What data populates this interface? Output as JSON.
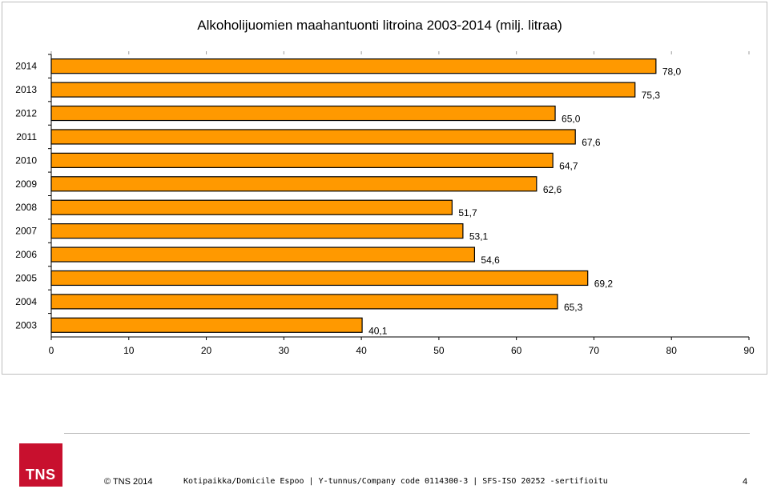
{
  "chart_data": {
    "type": "bar",
    "orientation": "horizontal",
    "title": "Alkoholijuomien maahantuonti litroina 2003-2014 (milj. litraa)",
    "xlabel": "",
    "ylabel": "",
    "categories": [
      "2014",
      "2013",
      "2012",
      "2011",
      "2010",
      "2009",
      "2008",
      "2007",
      "2006",
      "2005",
      "2004",
      "2003"
    ],
    "values": [
      78.0,
      75.3,
      65.0,
      67.6,
      64.7,
      62.6,
      51.7,
      53.1,
      54.6,
      69.2,
      65.3,
      40.1
    ],
    "value_labels": [
      "78,0",
      "75,3",
      "65,0",
      "67,6",
      "64,7",
      "62,6",
      "51,7",
      "53,1",
      "54,6",
      "69,2",
      "65,3",
      "40,1"
    ],
    "xlim": [
      0,
      90
    ],
    "xticks": [
      0,
      10,
      20,
      30,
      40,
      50,
      60,
      70,
      80,
      90
    ],
    "bar_color": "#ff9900",
    "bar_edge_color": "#000000",
    "grid": false,
    "legend": "none"
  },
  "footer": {
    "logo_text": "TNS",
    "copyright": "© TNS 2014",
    "info": "Kotipaikka/Domicile Espoo | Y-tunnus/Company code 0114300-3 | SFS-ISO 20252 -sertifioitu",
    "page_number": "4"
  },
  "colors": {
    "logo_red": "#c8102e",
    "bar_fill": "#ff9900"
  }
}
